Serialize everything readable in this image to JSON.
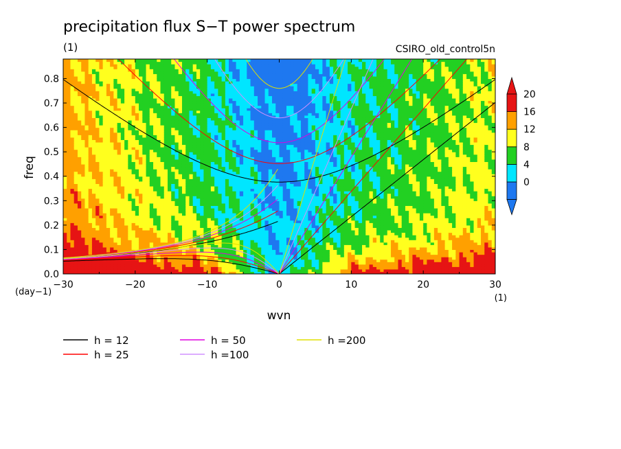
{
  "chart_data": {
    "type": "heatmap",
    "title": "precipitation flux S−T power spectrum",
    "subtitle_left": "(1)",
    "subtitle_right": "CSIRO_old_control5n",
    "xlabel": "wvn",
    "ylabel": "freq",
    "x_unit": "(1)",
    "y_unit": "(day−1)",
    "xlim": [
      -30,
      30
    ],
    "ylim": [
      0,
      0.88
    ],
    "x_ticks": [
      -30,
      -20,
      -10,
      0,
      10,
      20,
      30
    ],
    "x_tick_labels": [
      "−30",
      "−20",
      "−10",
      "0",
      "10",
      "20",
      "30"
    ],
    "y_ticks": [
      0,
      0.1,
      0.2,
      0.3,
      0.4,
      0.5,
      0.6,
      0.7,
      0.8
    ],
    "y_tick_labels": [
      "0.0",
      "0.1",
      "0.2",
      "0.3",
      "0.4",
      "0.5",
      "0.6",
      "0.7",
      "0.8"
    ],
    "colorbar": {
      "levels": [
        0,
        4,
        8,
        12,
        16,
        20
      ],
      "level_labels": [
        "0",
        "4",
        "8",
        "12",
        "16",
        "20"
      ],
      "colors": [
        "#1e78f0",
        "#00e6ff",
        "#22d022",
        "#ffff1e",
        "#ffa000",
        "#e61414"
      ],
      "extend": "both"
    },
    "field_description_points": [
      {
        "wvn": -30,
        "freq": 0.3,
        "value": 17
      },
      {
        "wvn": -25,
        "freq": 0.5,
        "value": 13
      },
      {
        "wvn": -10,
        "freq": 0.6,
        "value": 9
      },
      {
        "wvn": 0,
        "freq": 0.4,
        "value": 5
      },
      {
        "wvn": 0,
        "freq": 0.85,
        "value": 3
      },
      {
        "wvn": 20,
        "freq": 0.3,
        "value": 9
      },
      {
        "wvn": 28,
        "freq": 0.15,
        "value": 15
      },
      {
        "wvn": -20,
        "freq": 0.05,
        "value": 16
      }
    ],
    "dispersion_curves": {
      "legend": [
        {
          "label": "h = 12",
          "color": "#000000",
          "h": 12
        },
        {
          "label": "h = 25",
          "color": "#ff0000",
          "h": 25
        },
        {
          "label": "h = 50",
          "color": "#e000e0",
          "h": 50
        },
        {
          "label": "h =100",
          "color": "#d090ff",
          "h": 100
        },
        {
          "label": "h =200",
          "color": "#e0e000",
          "h": 200
        }
      ]
    }
  }
}
